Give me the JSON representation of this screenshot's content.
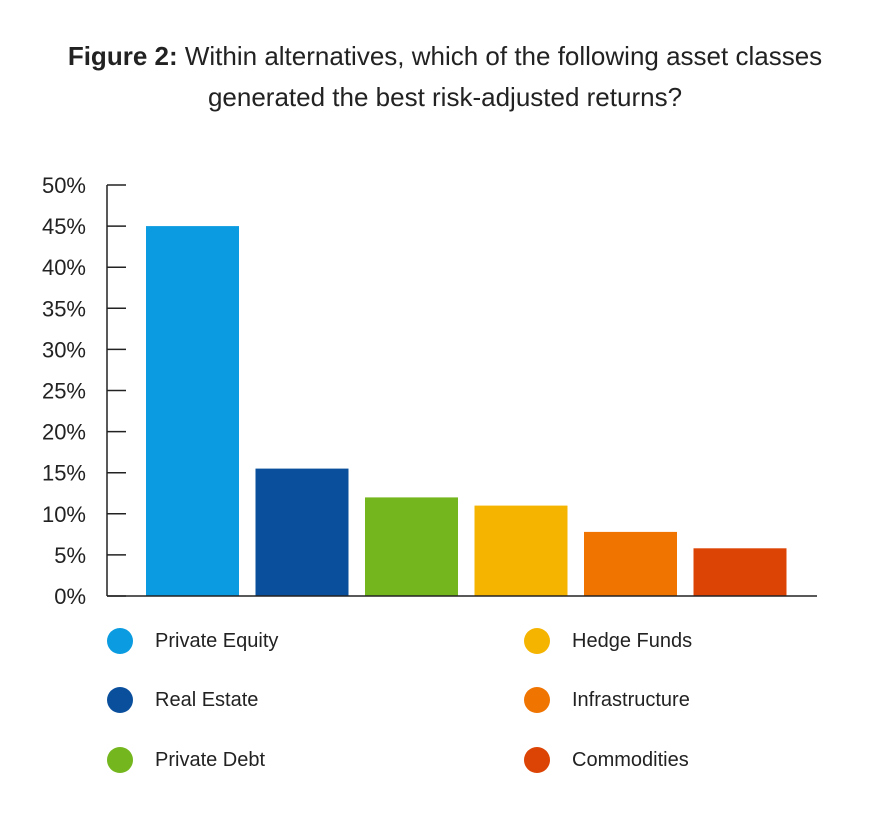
{
  "title": {
    "prefix": "Figure 2:",
    "text": "Within alternatives, which of the following asset classes generated the best risk-adjusted returns?"
  },
  "chart_data": {
    "type": "bar",
    "categories": [
      "Private Equity",
      "Real Estate",
      "Private Debt",
      "Hedge Funds",
      "Infrastructure",
      "Commodities"
    ],
    "values": [
      45,
      15.5,
      12,
      11,
      7.8,
      5.8
    ],
    "colors": [
      "#0a9be0",
      "#0a4f9c",
      "#74b61e",
      "#f5b400",
      "#f07400",
      "#dc4405"
    ],
    "ylim": [
      0,
      50
    ],
    "yticks": [
      0,
      5,
      10,
      15,
      20,
      25,
      30,
      35,
      40,
      45,
      50
    ],
    "ytick_labels": [
      "0%",
      "5%",
      "10%",
      "15%",
      "20%",
      "25%",
      "30%",
      "35%",
      "40%",
      "45%",
      "50%"
    ],
    "grid": false,
    "legend": {
      "placement": "bottom",
      "entries": [
        "Private Equity",
        "Real Estate",
        "Private Debt",
        "Hedge Funds",
        "Infrastructure",
        "Commodities"
      ]
    }
  }
}
